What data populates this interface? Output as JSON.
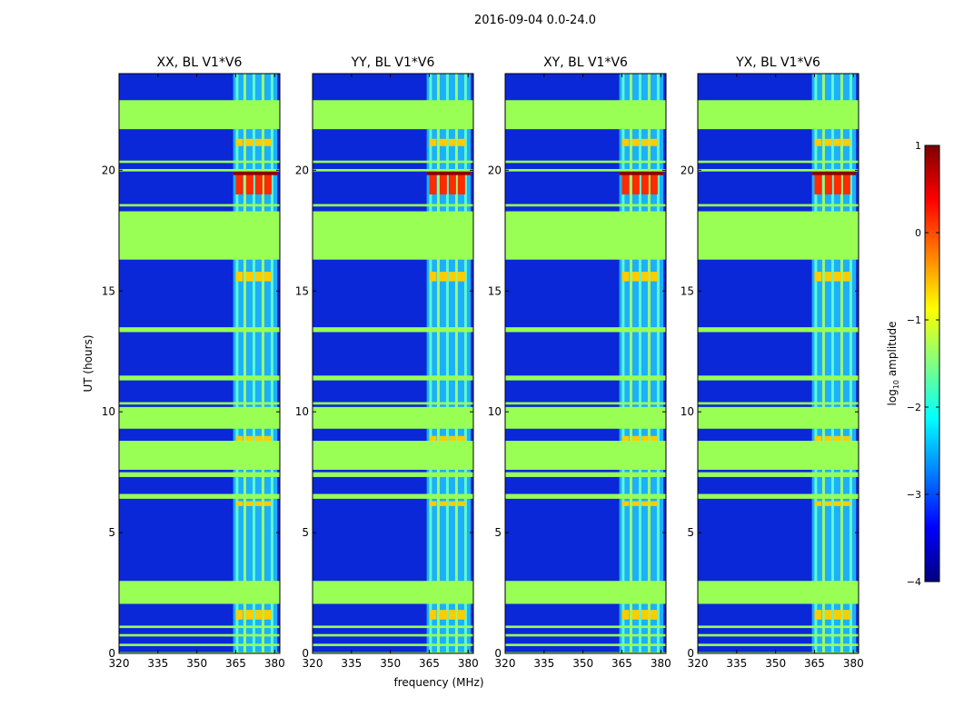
{
  "chart_data": {
    "type": "heatmap",
    "title": "2016-09-04 0.0-24.0",
    "xlabel": "frequency (MHz)",
    "ylabel": "UT (hours)",
    "xlim": [
      320,
      382
    ],
    "ylim": [
      0,
      24
    ],
    "x_ticks": [
      320,
      335,
      350,
      365,
      380
    ],
    "y_ticks": [
      0,
      5,
      10,
      15,
      20
    ],
    "panels": [
      {
        "title": "XX, BL V1*V6"
      },
      {
        "title": "YY, BL V1*V6"
      },
      {
        "title": "XY, BL V1*V6"
      },
      {
        "title": "YX, BL V1*V6"
      }
    ],
    "flagged_hours": [
      [
        0.0,
        0.05
      ],
      [
        0.3,
        0.4
      ],
      [
        0.7,
        0.8
      ],
      [
        1.05,
        1.15
      ],
      [
        2.05,
        3.0
      ],
      [
        6.4,
        6.6
      ],
      [
        7.3,
        7.5
      ],
      [
        7.6,
        8.8
      ],
      [
        9.3,
        10.2
      ],
      [
        10.3,
        10.4
      ],
      [
        11.3,
        11.5
      ],
      [
        13.3,
        13.5
      ],
      [
        16.3,
        18.3
      ],
      [
        18.5,
        18.6
      ],
      [
        19.95,
        20.05
      ],
      [
        20.3,
        20.4
      ],
      [
        21.7,
        22.9
      ]
    ],
    "rfi_band_mhz": [
      364,
      381
    ],
    "bright_hours": [
      [
        1.4,
        1.8
      ],
      [
        6.1,
        6.3
      ],
      [
        8.6,
        9.0
      ],
      [
        15.4,
        15.8
      ],
      [
        19.0,
        20.0
      ],
      [
        21.0,
        21.3
      ]
    ],
    "colorbar": {
      "label": "log$_{10}$ amplitude",
      "label_main": "log",
      "label_sub": "10",
      "label_tail": " amplitude",
      "range": [
        -4,
        1
      ],
      "ticks": [
        1,
        0,
        -1,
        -2,
        -3,
        -4
      ],
      "colors": [
        "#00007f",
        "#0000ff",
        "#0080ff",
        "#00ffff",
        "#80ff80",
        "#ffff00",
        "#ff8000",
        "#ff0000",
        "#7f0000"
      ]
    }
  }
}
